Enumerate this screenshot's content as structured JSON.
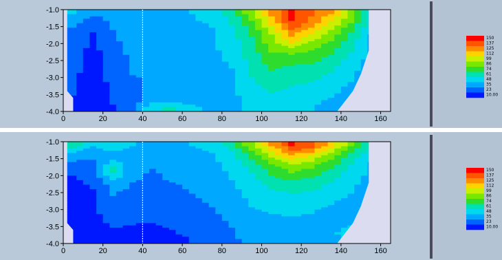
{
  "chart_data": [
    {
      "type": "heatmap",
      "title": "",
      "xlabel": "",
      "ylabel": "",
      "xlim": [
        0,
        165
      ],
      "ylim": [
        -4.0,
        -1.0
      ],
      "x_ticks": [
        "0",
        "20",
        "40",
        "60",
        "80",
        "100",
        "120",
        "140",
        "160"
      ],
      "y_ticks": [
        "-1.0",
        "-1.5",
        "-2.0",
        "-2.5",
        "-3.0",
        "-3.5",
        "-4.0"
      ],
      "marker_x": 40,
      "grid": false,
      "colorbar": {
        "levels": [
          "150",
          "137",
          "125",
          "112",
          "99",
          "86",
          "74",
          "61",
          "48",
          "35",
          "23",
          "10.00"
        ],
        "colors": [
          "#ff0000",
          "#ff5500",
          "#ff8c00",
          "#ffd200",
          "#c8f000",
          "#78e800",
          "#2edc2e",
          "#00e0b0",
          "#00d8f0",
          "#00a8ff",
          "#0064ff",
          "#0018ff"
        ]
      },
      "field": {
        "x": [
          5,
          15,
          25,
          35,
          45,
          55,
          65,
          75,
          85,
          95,
          105,
          115,
          125,
          135,
          145,
          155
        ],
        "y": [
          -1.1,
          -1.3,
          -1.5,
          -1.7,
          -1.9,
          -2.1,
          -2.3,
          -2.5,
          -2.7,
          -2.9,
          -3.1,
          -3.3,
          -3.5,
          -3.7,
          -3.9
        ],
        "values": [
          [
            48,
            38,
            40,
            45,
            44,
            46,
            48,
            52,
            70,
            95,
            130,
            150,
            140,
            125,
            95,
            60
          ],
          [
            40,
            30,
            38,
            43,
            44,
            45,
            47,
            50,
            64,
            86,
            120,
            150,
            135,
            115,
            90,
            55
          ],
          [
            35,
            25,
            36,
            42,
            42,
            44,
            46,
            48,
            60,
            80,
            110,
            145,
            125,
            105,
            80,
            52
          ],
          [
            32,
            22,
            34,
            40,
            41,
            43,
            45,
            47,
            58,
            75,
            100,
            130,
            112,
            95,
            72,
            48
          ],
          [
            30,
            20,
            33,
            40,
            40,
            42,
            44,
            46,
            55,
            72,
            95,
            120,
            100,
            86,
            68,
            46
          ],
          [
            30,
            20,
            32,
            38,
            39,
            41,
            44,
            46,
            54,
            70,
            90,
            100,
            90,
            80,
            64,
            45
          ],
          [
            28,
            18,
            31,
            37,
            38,
            40,
            43,
            45,
            52,
            68,
            85,
            86,
            82,
            74,
            60,
            44
          ],
          [
            28,
            18,
            30,
            36,
            37,
            40,
            42,
            44,
            50,
            66,
            80,
            78,
            76,
            70,
            56,
            43
          ],
          [
            27,
            17,
            29,
            36,
            36,
            39,
            41,
            43,
            48,
            64,
            76,
            72,
            70,
            64,
            52,
            42
          ],
          [
            26,
            16,
            28,
            35,
            36,
            38,
            40,
            42,
            47,
            62,
            72,
            68,
            66,
            60,
            50,
            41
          ],
          [
            25,
            15,
            27,
            34,
            36,
            38,
            40,
            42,
            46,
            60,
            68,
            64,
            62,
            56,
            48,
            40
          ],
          [
            24,
            15,
            26,
            33,
            36,
            38,
            39,
            41,
            45,
            58,
            64,
            60,
            58,
            52,
            44,
            38
          ],
          [
            23,
            14,
            25,
            32,
            38,
            40,
            40,
            41,
            44,
            56,
            60,
            56,
            55,
            50,
            42,
            36
          ],
          [
            22,
            13,
            24,
            31,
            42,
            46,
            44,
            42,
            44,
            54,
            56,
            52,
            50,
            46,
            40,
            34
          ],
          [
            20,
            12,
            22,
            30,
            60,
            62,
            50,
            45,
            45,
            52,
            54,
            50,
            48,
            44,
            38,
            32
          ]
        ]
      }
    },
    {
      "type": "heatmap",
      "title": "",
      "xlabel": "",
      "ylabel": "",
      "xlim": [
        0,
        165
      ],
      "ylim": [
        -4.0,
        -1.0
      ],
      "x_ticks": [
        "0",
        "20",
        "40",
        "60",
        "80",
        "100",
        "120",
        "140",
        "160"
      ],
      "y_ticks": [
        "-1.0",
        "-1.5",
        "-2.0",
        "-2.5",
        "-3.0",
        "-3.5",
        "-4.0"
      ],
      "marker_x": 40,
      "grid": false,
      "colorbar": {
        "levels": [
          "150",
          "137",
          "125",
          "112",
          "99",
          "86",
          "74",
          "61",
          "48",
          "35",
          "23",
          "10.00"
        ],
        "colors": [
          "#ff0000",
          "#ff5500",
          "#ff8c00",
          "#ffd200",
          "#c8f000",
          "#78e800",
          "#2edc2e",
          "#00e0b0",
          "#00d8f0",
          "#00a8ff",
          "#0064ff",
          "#0018ff"
        ]
      },
      "field": {
        "x": [
          5,
          15,
          25,
          35,
          45,
          55,
          65,
          75,
          85,
          95,
          105,
          115,
          125,
          135,
          145,
          155
        ],
        "y": [
          -1.1,
          -1.3,
          -1.5,
          -1.7,
          -1.9,
          -2.1,
          -2.3,
          -2.5,
          -2.7,
          -2.9,
          -3.1,
          -3.3,
          -3.5,
          -3.7,
          -3.9
        ],
        "values": [
          [
            70,
            48,
            60,
            48,
            42,
            46,
            48,
            52,
            68,
            95,
            125,
            150,
            145,
            120,
            90,
            65
          ],
          [
            48,
            40,
            46,
            44,
            40,
            44,
            46,
            48,
            60,
            84,
            110,
            135,
            125,
            100,
            76,
            55
          ],
          [
            38,
            35,
            44,
            42,
            38,
            42,
            44,
            46,
            56,
            74,
            95,
            112,
            104,
            88,
            66,
            50
          ],
          [
            30,
            30,
            60,
            40,
            36,
            40,
            42,
            44,
            52,
            66,
            84,
            96,
            90,
            76,
            60,
            46
          ],
          [
            24,
            28,
            66,
            38,
            34,
            38,
            40,
            42,
            50,
            62,
            76,
            86,
            80,
            70,
            56,
            45
          ],
          [
            22,
            26,
            48,
            36,
            33,
            36,
            38,
            40,
            48,
            58,
            70,
            76,
            72,
            64,
            52,
            44
          ],
          [
            20,
            24,
            40,
            34,
            32,
            34,
            36,
            38,
            46,
            54,
            64,
            68,
            66,
            58,
            50,
            43
          ],
          [
            20,
            22,
            36,
            32,
            30,
            33,
            35,
            37,
            44,
            52,
            58,
            62,
            60,
            54,
            48,
            42
          ],
          [
            20,
            22,
            34,
            30,
            30,
            32,
            34,
            36,
            42,
            50,
            54,
            56,
            55,
            50,
            46,
            41
          ],
          [
            18,
            20,
            32,
            28,
            28,
            30,
            33,
            35,
            40,
            48,
            50,
            52,
            50,
            47,
            44,
            40
          ],
          [
            18,
            20,
            30,
            26,
            26,
            28,
            32,
            34,
            38,
            46,
            48,
            50,
            48,
            45,
            42,
            38
          ],
          [
            16,
            18,
            28,
            25,
            24,
            26,
            30,
            33,
            36,
            44,
            46,
            46,
            45,
            43,
            40,
            36
          ],
          [
            15,
            16,
            24,
            22,
            22,
            24,
            28,
            32,
            35,
            42,
            44,
            44,
            43,
            42,
            50,
            34
          ],
          [
            12,
            14,
            20,
            18,
            18,
            22,
            26,
            30,
            34,
            40,
            42,
            42,
            42,
            44,
            60,
            32
          ],
          [
            10,
            12,
            16,
            14,
            14,
            18,
            24,
            28,
            33,
            38,
            40,
            40,
            40,
            42,
            48,
            30
          ]
        ]
      }
    }
  ]
}
